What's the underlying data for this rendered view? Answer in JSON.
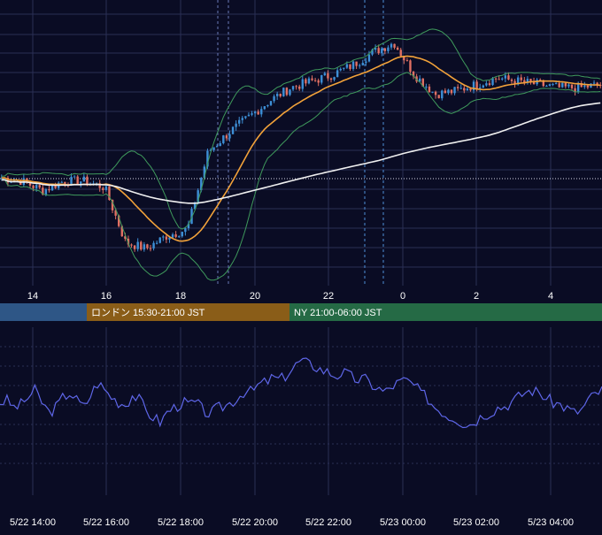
{
  "colors": {
    "background": "#0a0c24",
    "grid": "#2a2f55",
    "candle_up": "#3d8fd6",
    "candle_down": "#e07063",
    "bollinger": "#3f9a5c",
    "sma_short": "#f2a23a",
    "sma_long": "#f0f0f0",
    "oscillator": "#5e66e8",
    "axis_text": "#ffffff",
    "session_tokyo": "#2e5686",
    "session_london": "#8a5d18",
    "session_ny": "#256a45"
  },
  "sessions": [
    {
      "label": "",
      "color": "session_tokyo"
    },
    {
      "label": "ロンドン 15:30-21:00 JST",
      "color": "session_london"
    },
    {
      "label": "NY 21:00-06:00 JST",
      "color": "session_ny"
    }
  ],
  "chart_data": [
    {
      "type": "candlestick",
      "title": "",
      "x_tick_labels": [
        "14",
        "16",
        "18",
        "20",
        "22",
        "0",
        "2",
        "4"
      ],
      "grid": true,
      "series": [
        {
          "name": "",
          "kind": "candles",
          "values_trend": [
            0.48,
            0.47,
            0.44,
            0.47,
            0.47,
            0.45,
            0.28,
            0.26,
            0.3,
            0.32,
            0.56,
            0.62,
            0.67,
            0.72,
            0.76,
            0.78,
            0.8,
            0.83,
            0.87,
            0.9,
            0.8,
            0.74,
            0.75,
            0.77,
            0.79,
            0.78,
            0.77,
            0.76,
            0.76,
            0.77
          ]
        },
        {
          "name": "",
          "kind": "bollinger_bands"
        },
        {
          "name": "",
          "kind": "moving_average_short"
        },
        {
          "name": "",
          "kind": "moving_average_long"
        }
      ]
    },
    {
      "type": "line",
      "title": "",
      "x_tick_labels": [
        "5/22 14:00",
        "5/22 16:00",
        "5/22 18:00",
        "5/22 20:00",
        "5/22 22:00",
        "5/23 00:00",
        "5/23 02:00",
        "5/23 04:00"
      ],
      "grid": true,
      "series": [
        {
          "name": "",
          "values": [
            0.5,
            0.52,
            0.45,
            0.48,
            0.55,
            0.62,
            0.5,
            0.4,
            0.45,
            0.55,
            0.6,
            0.52,
            0.45,
            0.58,
            0.7,
            0.62,
            0.55,
            0.5,
            0.48,
            0.58,
            0.52,
            0.4,
            0.35,
            0.3,
            0.42,
            0.45,
            0.5,
            0.48,
            0.5,
            0.42,
            0.38,
            0.44,
            0.46,
            0.5,
            0.55,
            0.62,
            0.6,
            0.68,
            0.7,
            0.75,
            0.72,
            0.78,
            0.85,
            0.92,
            0.88,
            0.86,
            0.82,
            0.8,
            0.76,
            0.8,
            0.76,
            0.72,
            0.74,
            0.68,
            0.64,
            0.6,
            0.66,
            0.7,
            0.72,
            0.68,
            0.6,
            0.55,
            0.46,
            0.42,
            0.36,
            0.35,
            0.3,
            0.28,
            0.32,
            0.38,
            0.4,
            0.45,
            0.46,
            0.5,
            0.55,
            0.6,
            0.62,
            0.6,
            0.54,
            0.5,
            0.48,
            0.44,
            0.4,
            0.42,
            0.52,
            0.58,
            0.62
          ]
        }
      ]
    }
  ]
}
